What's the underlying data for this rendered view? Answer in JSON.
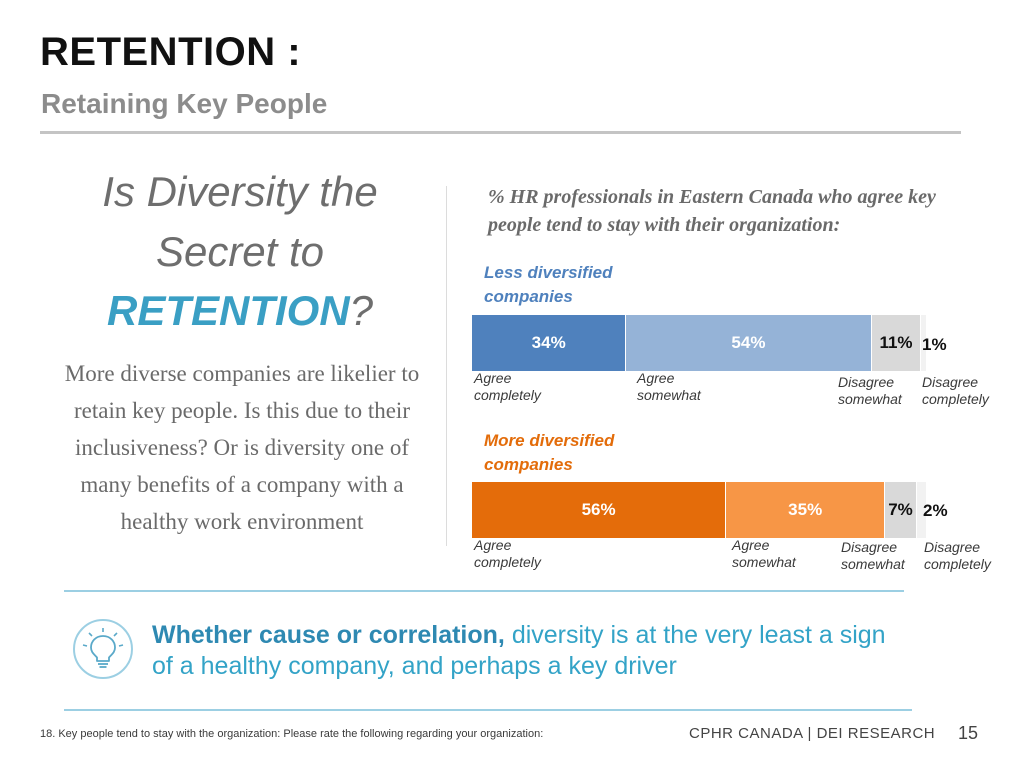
{
  "header": {
    "title": "RETENTION :",
    "subtitle": "Retaining Key People"
  },
  "question": {
    "line1": "Is Diversity the",
    "line2": "Secret to",
    "line3_strong": "RETENTION",
    "line3_end": "?"
  },
  "body_text": "More diverse companies are likelier to retain key people. Is this due to their inclusiveness? Or is diversity one of many benefits of a company with a healthy work environment",
  "chart_data": {
    "type": "bar",
    "orientation": "horizontal-stacked",
    "title": "% HR professionals in Eastern Canada who agree key people tend to stay with their organization:",
    "unit": "%",
    "categories": [
      "Agree completely",
      "Agree somewhat",
      "Disagree somewhat",
      "Disagree completely"
    ],
    "series": [
      {
        "name": "Less diversified companies",
        "values": [
          34,
          54,
          11,
          1
        ],
        "value_labels": [
          "34%",
          "54%",
          "11%",
          "1%"
        ],
        "colors": [
          "#4f81bd",
          "#95b3d7",
          "#d9d9d9",
          "#f2f2f2"
        ]
      },
      {
        "name": "More diversified companies",
        "values": [
          56,
          35,
          7,
          2
        ],
        "value_labels": [
          "56%",
          "35%",
          "7%",
          "2%"
        ],
        "colors": [
          "#e46c0a",
          "#f79646",
          "#d9d9d9",
          "#f2f2f2"
        ]
      }
    ],
    "category_labels": {
      "agree_completely": "Agree completely",
      "agree_somewhat": "Agree somewhat",
      "disagree_somewhat": "Disagree somewhat",
      "disagree_completely": "Disagree completely"
    },
    "xlim": [
      0,
      100
    ]
  },
  "takeaway": {
    "bold": "Whether cause or correlation,",
    "rest": " diversity is at the very least a sign of a healthy company, and perhaps a key driver"
  },
  "footer": {
    "footnote": "18.  Key people tend to stay with the organization: Please rate the following regarding your organization:",
    "brand": "CPHR CANADA | DEI RESEARCH",
    "page": "15"
  },
  "icons": {
    "takeaway": "lightbulb-icon"
  },
  "colors": {
    "teal": "#33a3c7",
    "rule": "#c4c4c4"
  }
}
